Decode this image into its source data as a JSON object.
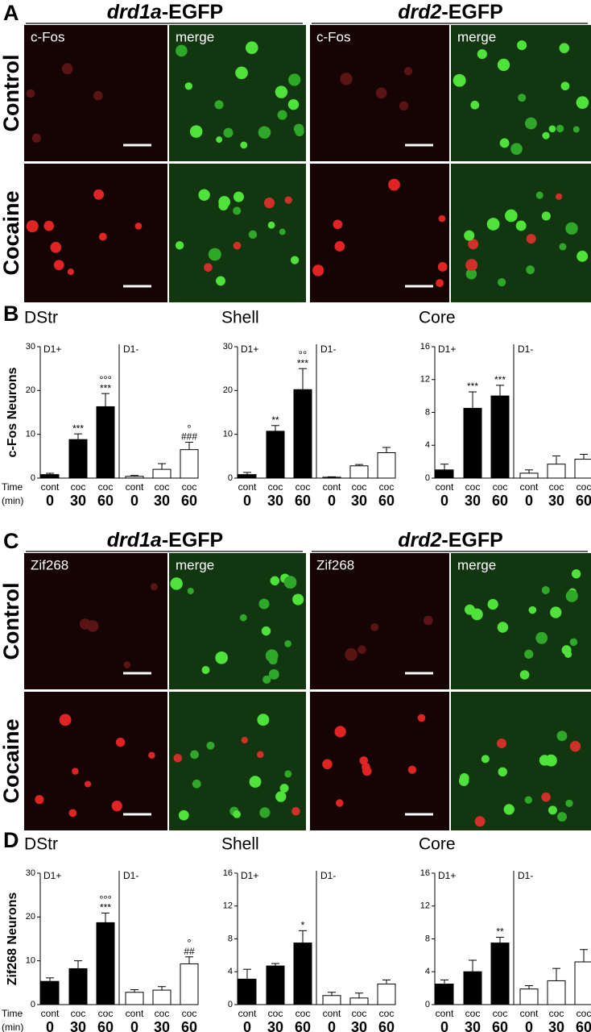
{
  "figure": [
    {
      "label": "A",
      "rows": [
        "Control",
        "Cocaine"
      ],
      "columns": [
        {
          "gene": "drd1a",
          "suffix": "-EGFP",
          "images": [
            "c-Fos",
            "merge"
          ]
        },
        {
          "gene": "drd2",
          "suffix": "-EGFP",
          "images": [
            "c-Fos",
            "merge"
          ]
        }
      ]
    },
    {
      "label": "C",
      "rows": [
        "Control",
        "Cocaine"
      ],
      "columns": [
        {
          "gene": "drd1a",
          "suffix": "-EGFP",
          "images": [
            "Zif268",
            "merge"
          ]
        },
        {
          "gene": "drd2",
          "suffix": "-EGFP",
          "images": [
            "Zif268",
            "merge"
          ]
        }
      ]
    }
  ],
  "chart_data": [
    {
      "type": "bar",
      "panel": "B",
      "title": "DStr",
      "y_label": "c-Fos Neurons",
      "x_label": "Time",
      "x_unit": "(min)",
      "groups": [
        "D1+",
        "D1-"
      ],
      "categories": [
        "cont",
        "coc",
        "coc",
        "cont",
        "coc",
        "coc"
      ],
      "times": [
        "0",
        "30",
        "60",
        "0",
        "30",
        "60"
      ],
      "values": [
        0.8,
        8.8,
        16.3,
        0.4,
        2.0,
        6.5
      ],
      "errors": [
        0.3,
        1.3,
        3.0,
        0.2,
        1.3,
        1.7
      ],
      "colors": [
        "#000000",
        "#000000",
        "#000000",
        "#ffffff",
        "#ffffff",
        "#ffffff"
      ],
      "stars": [
        null,
        "***",
        "***",
        null,
        null,
        "###"
      ],
      "circles": [
        null,
        null,
        "°°°",
        null,
        null,
        "°"
      ],
      "ylim": [
        0,
        30
      ],
      "yticks": [
        0,
        10,
        20,
        30
      ]
    },
    {
      "type": "bar",
      "title": "Shell",
      "groups": [
        "D1+",
        "D1-"
      ],
      "categories": [
        "cont",
        "coc",
        "coc",
        "cont",
        "coc",
        "coc"
      ],
      "times": [
        "0",
        "30",
        "60",
        "0",
        "30",
        "60"
      ],
      "values": [
        0.8,
        10.7,
        20.2,
        0.2,
        2.8,
        5.8
      ],
      "errors": [
        0.5,
        1.3,
        4.8,
        0.1,
        0.3,
        1.2
      ],
      "colors": [
        "#000000",
        "#000000",
        "#000000",
        "#ffffff",
        "#ffffff",
        "#ffffff"
      ],
      "stars": [
        null,
        "**",
        "***",
        null,
        null,
        null
      ],
      "circles": [
        null,
        null,
        "°°",
        null,
        null,
        null
      ],
      "ylim": [
        0,
        30
      ],
      "yticks": [
        0,
        10,
        20,
        30
      ]
    },
    {
      "type": "bar",
      "title": "Core",
      "groups": [
        "D1+",
        "D1-"
      ],
      "categories": [
        "cont",
        "coc",
        "coc",
        "cont",
        "coc",
        "coc"
      ],
      "times": [
        "0",
        "30",
        "60",
        "0",
        "30",
        "60"
      ],
      "values": [
        1.0,
        8.5,
        10.0,
        0.6,
        1.7,
        2.3
      ],
      "errors": [
        0.7,
        2.0,
        1.3,
        0.4,
        1.0,
        0.6
      ],
      "colors": [
        "#000000",
        "#000000",
        "#000000",
        "#ffffff",
        "#ffffff",
        "#ffffff"
      ],
      "stars": [
        null,
        "***",
        "***",
        null,
        null,
        null
      ],
      "circles": [
        null,
        null,
        null,
        null,
        null,
        null
      ],
      "ylim": [
        0,
        16
      ],
      "yticks": [
        0,
        4,
        8,
        12,
        16
      ]
    },
    {
      "type": "bar",
      "panel": "D",
      "title": "DStr",
      "y_label": "Zif268 Neurons",
      "x_label": "Time",
      "x_unit": "(min)",
      "groups": [
        "D1+",
        "D1-"
      ],
      "categories": [
        "cont",
        "coc",
        "coc",
        "cont",
        "coc",
        "coc"
      ],
      "times": [
        "0",
        "30",
        "60",
        "0",
        "30",
        "60"
      ],
      "values": [
        5.3,
        8.2,
        18.7,
        2.8,
        3.3,
        9.3
      ],
      "errors": [
        0.8,
        1.8,
        2.2,
        0.6,
        0.8,
        1.6
      ],
      "colors": [
        "#000000",
        "#000000",
        "#000000",
        "#ffffff",
        "#ffffff",
        "#ffffff"
      ],
      "stars": [
        null,
        null,
        "***",
        null,
        null,
        "##"
      ],
      "circles": [
        null,
        null,
        "°°°",
        null,
        null,
        "°"
      ],
      "ylim": [
        0,
        30
      ],
      "yticks": [
        0,
        10,
        20,
        30
      ]
    },
    {
      "type": "bar",
      "title": "Shell",
      "groups": [
        "D1+",
        "D1-"
      ],
      "categories": [
        "cont",
        "coc",
        "coc",
        "cont",
        "coc",
        "coc"
      ],
      "times": [
        "0",
        "30",
        "60",
        "0",
        "30",
        "60"
      ],
      "values": [
        3.1,
        4.7,
        7.5,
        1.1,
        0.8,
        2.5
      ],
      "errors": [
        1.2,
        0.3,
        1.5,
        0.4,
        0.6,
        0.5
      ],
      "colors": [
        "#000000",
        "#000000",
        "#000000",
        "#ffffff",
        "#ffffff",
        "#ffffff"
      ],
      "stars": [
        null,
        null,
        "*",
        null,
        null,
        null
      ],
      "circles": [
        null,
        null,
        null,
        null,
        null,
        null
      ],
      "ylim": [
        0,
        16
      ],
      "yticks": [
        0,
        4,
        8,
        12,
        16
      ]
    },
    {
      "type": "bar",
      "title": "Core",
      "groups": [
        "D1+",
        "D1-"
      ],
      "categories": [
        "cont",
        "coc",
        "coc",
        "cont",
        "coc",
        "coc"
      ],
      "times": [
        "0",
        "30",
        "60",
        "0",
        "30",
        "60"
      ],
      "values": [
        2.5,
        4.0,
        7.5,
        1.9,
        2.9,
        5.2
      ],
      "errors": [
        0.5,
        1.4,
        0.7,
        0.4,
        1.5,
        1.5
      ],
      "colors": [
        "#000000",
        "#000000",
        "#000000",
        "#ffffff",
        "#ffffff",
        "#ffffff"
      ],
      "stars": [
        null,
        null,
        "**",
        null,
        null,
        null
      ],
      "circles": [
        null,
        null,
        null,
        null,
        null,
        null
      ],
      "ylim": [
        0,
        16
      ],
      "yticks": [
        0,
        4,
        8,
        12,
        16
      ]
    }
  ]
}
